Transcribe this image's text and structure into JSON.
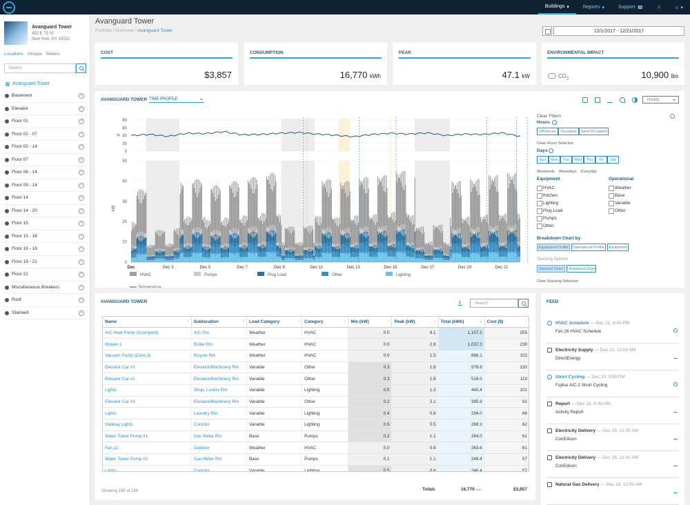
{
  "topnav": {
    "items": [
      {
        "label": "Buildings",
        "active": true,
        "caret": "▾"
      },
      {
        "label": "Reports",
        "active": false,
        "caret": "▾"
      },
      {
        "label": "Support",
        "active": false,
        "caret": "☎"
      }
    ]
  },
  "building": {
    "name": "Avanguard Tower",
    "address_line1": "452 E 75 St",
    "address_line2": "New York, NY 10021"
  },
  "sidebar": {
    "tabs": [
      "Locations",
      "Groups",
      "Meters"
    ],
    "search_placeholder": "Search",
    "root": "Avanguard Tower",
    "items": [
      "Basement",
      "Elevator",
      "Floor 01",
      "Floor 02 - 07",
      "Floor 02 - 14",
      "Floor 07",
      "Floor 08 - 14",
      "Floor 09 - 14",
      "Floor 14",
      "Floor 14 - 20",
      "Floor 15",
      "Floor 15 - 18",
      "Floor 16 - 18",
      "Floor 19 - 21",
      "Floor 21",
      "Miscellaneous Breakers",
      "Roof",
      "Stairwell"
    ]
  },
  "page": {
    "title": "Avanguard Tower",
    "breadcrumb": [
      "Portfolio",
      "/",
      "Overview",
      "/",
      "Avanguard Tower"
    ],
    "date_range": "12/1/2017 - 12/21/2017"
  },
  "kpis": {
    "cost": {
      "title": "COST",
      "value": "$3,857"
    },
    "consumption": {
      "title": "CONSUMPTION",
      "value": "16,770",
      "unit": "kWh"
    },
    "peak": {
      "title": "PEAK",
      "value": "47.1",
      "unit": "kW"
    },
    "env": {
      "title": "ENVIRONMENTAL IMPACT",
      "label": "CO",
      "sub": "2",
      "value": "10,900",
      "unit": "lbs"
    }
  },
  "chart_panel": {
    "title": "AVANGUARD TOWER",
    "profile": "TIME PROFILE",
    "interval": "Hourly",
    "icons": [
      "settings-icon",
      "copy-icon",
      "download-icon",
      "share-icon",
      "contrast-icon"
    ]
  },
  "chart_data": {
    "type": "area",
    "temperature": {
      "ylabel": "°F",
      "yticks": [
        0,
        20,
        40,
        60,
        80
      ],
      "ylim": [
        0,
        80
      ],
      "series_name": "Temperature",
      "x_day": [
        0,
        1,
        2,
        3,
        4,
        5,
        6,
        7,
        8,
        9,
        10,
        11,
        12,
        13,
        14,
        15,
        16,
        17,
        18,
        19,
        20,
        21
      ],
      "values": [
        40,
        43,
        38,
        46,
        45,
        50,
        42,
        43,
        46,
        48,
        44,
        41,
        37,
        43,
        46,
        44,
        47,
        40,
        44,
        43,
        47,
        38
      ]
    },
    "power": {
      "ylabel": "kW",
      "yticks": [
        0,
        10,
        20,
        30,
        40,
        50
      ],
      "ylim": [
        0,
        50
      ],
      "xticks": [
        "Dec",
        "Dec 3",
        "Dec 5",
        "Dec 7",
        "Dec 9",
        "Dec 11",
        "Dec 13",
        "Dec 15",
        "Dec 17",
        "Dec 19",
        "Dec 21"
      ],
      "xtick_days": [
        0,
        2,
        4,
        6,
        8,
        10,
        12,
        14,
        16,
        18,
        20
      ],
      "days": 21,
      "daily_peak_kw": [
        36,
        38,
        40,
        41,
        38,
        40,
        42,
        44,
        42,
        43,
        41,
        40,
        42,
        43,
        45,
        42,
        44,
        40,
        41,
        43,
        44
      ],
      "series": [
        {
          "name": "HVAC",
          "color": "#9e9e9e",
          "share": 0.58
        },
        {
          "name": "Pumps",
          "color": "#c9c9c9",
          "share": 0.06
        },
        {
          "name": "Plug Load",
          "color": "#2c6f9a",
          "share": 0.12
        },
        {
          "name": "Other",
          "color": "#3a8fc2",
          "share": 0.12
        },
        {
          "name": "Lighting",
          "color": "#6cc3ea",
          "share": 0.12
        }
      ],
      "weekend_days": [
        [
          0.8,
          2.6
        ],
        [
          8.1,
          9.9
        ],
        [
          15.3,
          17.2
        ]
      ],
      "highlight_days": [
        [
          11.2,
          11.8
        ]
      ],
      "dashed_days": [
        9.3,
        12.3,
        14.3,
        19.2,
        20.8,
        21.4
      ],
      "dashed_yellow_days": [
        9.5,
        14.0
      ]
    }
  },
  "filters": {
    "clear": "Clear Filters",
    "hours_label": "Hours",
    "hours_buttons": [
      "Off-Hours",
      "Occupied",
      "Semi-Occupied"
    ],
    "clear_hours": "Clear Hours Selection",
    "days_label": "Days",
    "days_buttons": [
      "Sun",
      "Mon",
      "Tue",
      "Wed",
      "Thu",
      "Fri",
      "Sat"
    ],
    "day_groups": [
      "Weekends",
      "Weekdays",
      "Everyday"
    ],
    "equipment_label": "Equipment",
    "equipment": [
      "HVAC",
      "Kitchen",
      "Lighting",
      "Plug Load",
      "Pumps",
      "Other"
    ],
    "operational_label": "Operational",
    "operational": [
      "Weather",
      "Base",
      "Variable",
      "Other"
    ],
    "breakdown_label": "Breakdown Chart by",
    "breakdown_buttons": [
      "Equipment Profile",
      "Operational Profile",
      "Equipment"
    ],
    "stacking_label": "Stacking Options",
    "stacking_buttons": [
      "Stacked Chart",
      "Unstacked Chart"
    ],
    "clear_stacking": "Clear Stacking Selection"
  },
  "table_panel": {
    "title": "AVANGUARD TOWER",
    "search_placeholder": "Search",
    "columns": [
      "Name",
      "Sublocation",
      "Load Category",
      "Category",
      "Min (kW)",
      "Peak (kW)",
      "Total (kWh)",
      "Cost ($)"
    ],
    "rows": [
      [
        "A/C Heat Pump (Courtyard)",
        "A/C Rm",
        "Weather",
        "HVAC",
        "0.0",
        "8.1",
        "1,107.2",
        "255"
      ],
      [
        "Blower 1",
        "Boiler Rm",
        "Weather",
        "HVAC",
        "0.0",
        "2.8",
        "1,037.3",
        "239"
      ],
      [
        "Vacuum Pump (Zone 3)",
        "Bicycle Rm",
        "Weather",
        "HVAC",
        "0.0",
        "1.5",
        "666.1",
        "153"
      ],
      [
        "Elevator Car #2",
        "Elevator/Machinery Rm",
        "Variable",
        "Other",
        "0.3",
        "1.8",
        "576.8",
        "133"
      ],
      [
        "Elevator Car #1",
        "Elevator/Machinery Rm",
        "Variable",
        "Other",
        "0.3",
        "1.8",
        "516.0",
        "119"
      ],
      [
        "Lights",
        "Shop, Locker Rm",
        "Variable",
        "Lighting",
        "0.5",
        "1.3",
        "440.4",
        "101"
      ],
      [
        "Elevator Car #3",
        "Elevator/Machinery Rm",
        "Variable",
        "Other",
        "0.2",
        "2.1",
        "395.9",
        "91"
      ],
      [
        "Lights",
        "Laundry Rm",
        "Variable",
        "Lighting",
        "0.4",
        "0.8",
        "294.0",
        "68"
      ],
      [
        "Hallway Lights",
        "Corridor",
        "Variable",
        "Lighting",
        "0.5",
        "0.5",
        "268.3",
        "62"
      ],
      [
        "Water Tower Pump #1",
        "Gas Meter Rm",
        "Base",
        "Pumps",
        "0.2",
        "1.1",
        "264.0",
        "61"
      ],
      [
        "Fan 22",
        "Outdoor",
        "Weather",
        "HVAC",
        "0.0",
        "0.8",
        "263.6",
        "61"
      ],
      [
        "Water Tower Pump #2",
        "Gas Meter Rm",
        "Base",
        "Pumps",
        "0.1",
        "1.1",
        "248.4",
        "57"
      ],
      [
        "Lights",
        "Corridor",
        "Variable",
        "Lighting",
        "0.5",
        "0.8",
        "246.4",
        "57"
      ]
    ],
    "totals_label": "Totals",
    "total_kwh": "16,770",
    "total_kwh_unit": "kWh",
    "total_cost": "$3,857",
    "showing": "Showing 198 of 198"
  },
  "feed": {
    "title": "FEED",
    "items": [
      {
        "title": "HVAC Schedule",
        "time": "— Dec 21, 4:45 PM",
        "sub": "Fan 26 HVAC Schedule",
        "kind": "event"
      },
      {
        "title": "Electricity Supply",
        "time": "— Dec 21, 12:00 AM",
        "sub": "DirectEnergy",
        "kind": "doc"
      },
      {
        "title": "Short Cycling",
        "time": "— Dec 20, 3:59 PM",
        "sub": "Fujitsu A/C-2 Short Cycling",
        "kind": "event"
      },
      {
        "title": "Report",
        "time": "— Dec 18, 8:49 AM",
        "sub": "Activity Report",
        "kind": "doc"
      },
      {
        "title": "Electricity Delivery",
        "time": "— Dec 18, 12:00 AM",
        "sub": "ConEdison",
        "kind": "doc"
      },
      {
        "title": "Electricity Delivery",
        "time": "— Dec 18, 12:00 AM",
        "sub": "ConEdison",
        "kind": "doc"
      },
      {
        "title": "Natural Gas Delivery",
        "time": "— Dec 18, 12:00 AM",
        "sub": "",
        "kind": "doc"
      }
    ]
  }
}
